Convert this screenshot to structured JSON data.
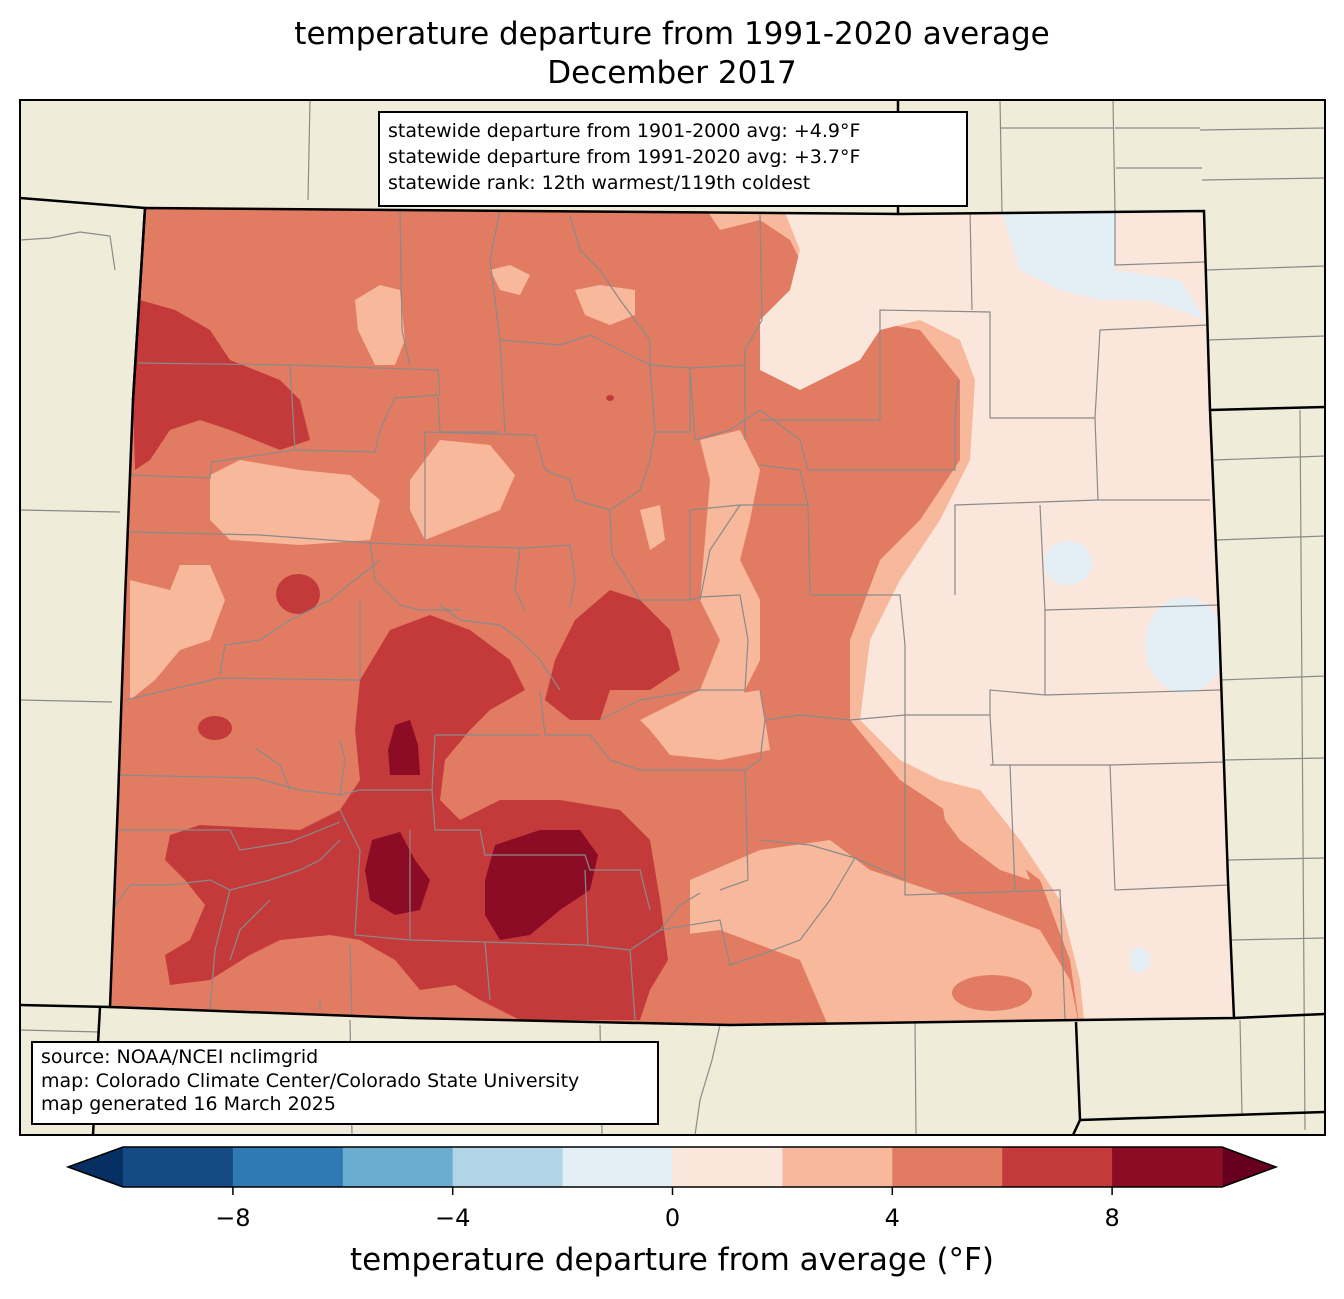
{
  "title": {
    "line1": "temperature departure from 1991-2020 average",
    "line2": "December 2017"
  },
  "stats": {
    "line1": "statewide departure from 1901-2000 avg: +4.9°F",
    "line2": "statewide departure from 1991-2020 avg: +3.7°F",
    "line3": "statewide rank: 12th warmest/119th coldest"
  },
  "source": {
    "line1": "source: NOAA/NCEI nclimgrid",
    "line2": "map: Colorado Climate Center/Colorado State University",
    "line3": "map generated 16 March 2025"
  },
  "colorbar": {
    "label": "temperature departure from average (°F)",
    "bins": [
      -10,
      -8,
      -6,
      -4,
      -2,
      0,
      2,
      4,
      6,
      8,
      10
    ],
    "colors": [
      "#154b85",
      "#2f79b5",
      "#6aadd1",
      "#b1d4e7",
      "#e4eef5",
      "#fbe6dc",
      "#f7b89c",
      "#e17c63",
      "#c43a3b",
      "#8c0c25"
    ],
    "under_color": "#053061",
    "over_color": "#67001f",
    "ticks": [
      {
        "value": -8,
        "label": "−8"
      },
      {
        "value": -4,
        "label": "−4"
      },
      {
        "value": 0,
        "label": "0"
      },
      {
        "value": 4,
        "label": "4"
      },
      {
        "value": 8,
        "label": "8"
      }
    ]
  },
  "map_colors": {
    "land": "#efedda",
    "county_line": "#8a8a8a",
    "state_line": "#000000"
  }
}
